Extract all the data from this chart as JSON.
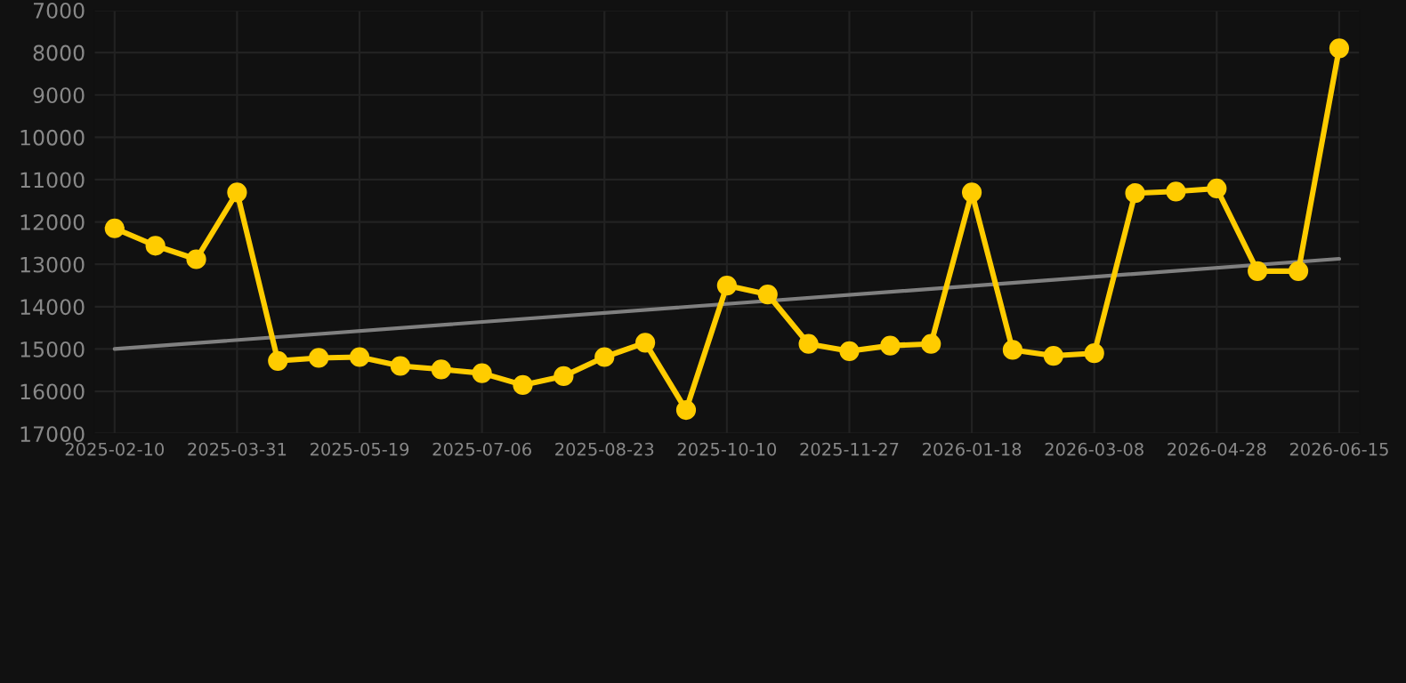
{
  "chart_data": {
    "type": "line",
    "categories": [
      "2025-02-10",
      null,
      null,
      "2025-03-31",
      null,
      null,
      "2025-05-19",
      null,
      null,
      "2025-07-06",
      null,
      null,
      "2025-08-23",
      null,
      null,
      "2025-10-10",
      null,
      null,
      "2025-11-27",
      null,
      null,
      "2026-01-18",
      null,
      null,
      "2026-03-08",
      null,
      null,
      "2026-04-28",
      null,
      null,
      "2026-06-15"
    ],
    "series": [
      {
        "color": "#ffcc00",
        "marker": "circle",
        "values": [
          12150,
          12560,
          12880,
          11300,
          15280,
          15210,
          15190,
          15400,
          15480,
          15570,
          15850,
          15640,
          15190,
          14850,
          16440,
          13500,
          13710,
          14880,
          15050,
          14920,
          14880,
          11300,
          15020,
          15160,
          15100,
          11320,
          11280,
          11210,
          13160,
          13160,
          7900
        ]
      },
      {
        "color": "#808080",
        "marker": "none",
        "values": [
          15000,
          null,
          null,
          null,
          null,
          null,
          null,
          null,
          null,
          null,
          null,
          null,
          null,
          null,
          null,
          null,
          null,
          null,
          null,
          null,
          null,
          null,
          null,
          null,
          null,
          null,
          null,
          null,
          null,
          null,
          12870
        ]
      }
    ],
    "ylim": [
      17000,
      7000
    ],
    "yticks": [
      7000,
      8000,
      9000,
      10000,
      11000,
      12000,
      13000,
      14000,
      15000,
      16000,
      17000
    ],
    "grid": true,
    "legend": false
  }
}
